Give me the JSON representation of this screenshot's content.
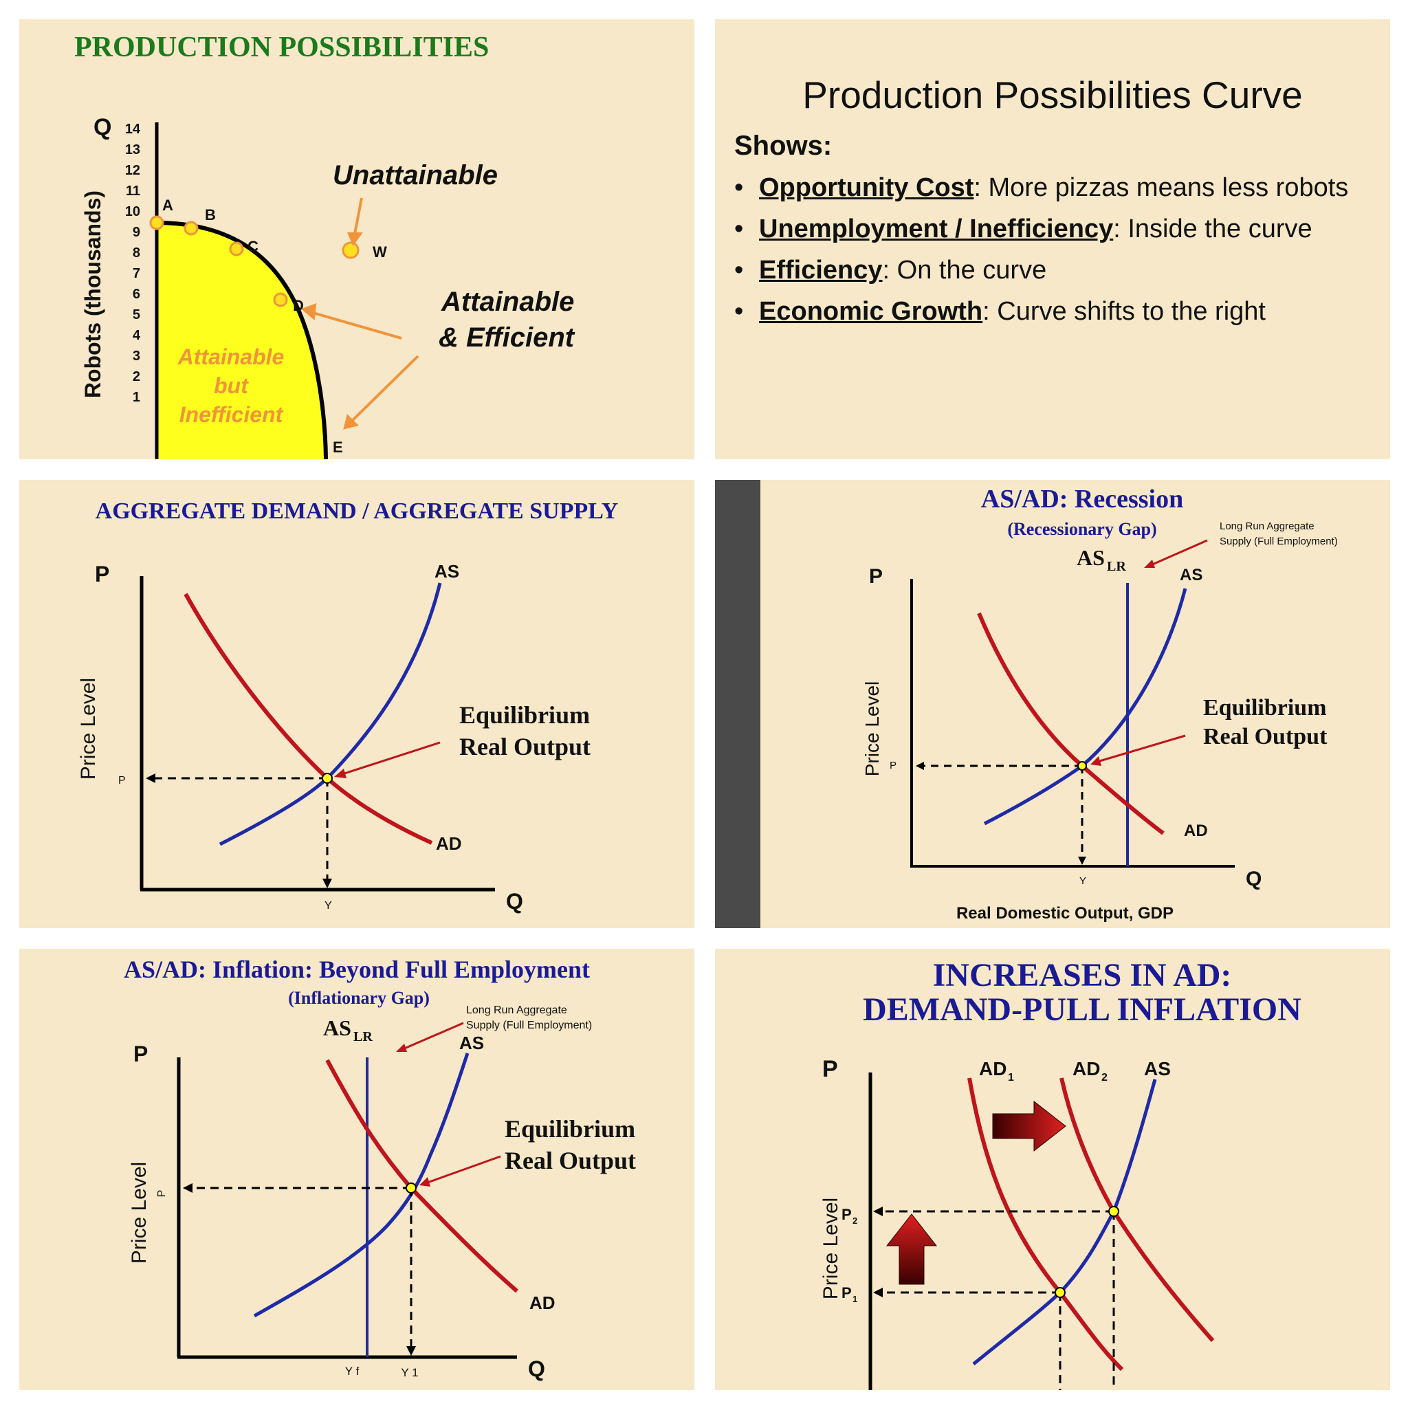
{
  "panels": [
    {
      "title": "PRODUCTION POSSIBILITIES",
      "y_axis_letter": "Q",
      "y_axis_label": "Robots (thousands)",
      "y_ticks": [
        "14",
        "13",
        "12",
        "11",
        "10",
        "9",
        "8",
        "7",
        "6",
        "5",
        "4",
        "3",
        "2",
        "1"
      ],
      "points": [
        "A",
        "B",
        "C",
        "D",
        "E",
        "W"
      ],
      "unattainable": "Unattainable",
      "attainable_efficient_1": "Attainable",
      "attainable_efficient_2": "& Efficient",
      "inefficient_1": "Attainable",
      "inefficient_2": "but",
      "inefficient_3": "Inefficient"
    },
    {
      "title": "Production Possibilities Curve",
      "shows": "Shows:",
      "bullet": "•",
      "items": [
        {
          "term": "Opportunity Cost",
          "text": ": More pizzas means less robots"
        },
        {
          "term": "Unemployment / Inefficiency",
          "text": ": Inside the curve"
        },
        {
          "term": "Efficiency",
          "text": ": On the curve"
        },
        {
          "term": "Economic Growth",
          "text": ": Curve shifts to the right"
        }
      ]
    },
    {
      "title": "AGGREGATE DEMAND / AGGREGATE SUPPLY",
      "p_axis": "P",
      "q_axis": "Q",
      "y_axis_label": "Price Level",
      "p_tick": "P",
      "y_tick": "Y",
      "as_label": "AS",
      "ad_label": "AD",
      "eq_1": "Equilibrium",
      "eq_2": "Real Output"
    },
    {
      "title": "AS/AD: Recession",
      "subtitle": "(Recessionary Gap)",
      "aslr": "AS",
      "aslr_sub": "LR",
      "lr_note_1": "Long Run Aggregate",
      "lr_note_2": "Supply (Full Employment)",
      "p_axis": "P",
      "q_axis": "Q",
      "y_axis_label": "Price Level",
      "p_tick": "P",
      "y_tick": "Y",
      "as_label": "AS",
      "ad_label": "AD",
      "eq_1": "Equilibrium",
      "eq_2": "Real Output",
      "x_axis_label": "Real Domestic Output, GDP"
    },
    {
      "title": "AS/AD: Inflation: Beyond Full Employment",
      "subtitle": "(Inflationary Gap)",
      "aslr": "AS",
      "aslr_sub": "LR",
      "lr_note_1": "Long Run Aggregate",
      "lr_note_2": "Supply (Full Employment)",
      "p_axis": "P",
      "q_axis": "Q",
      "y_axis_label": "Price Level",
      "p_tick": "P",
      "yf_tick": "Y f",
      "y1_tick": "Y 1",
      "as_label": "AS",
      "ad_label": "AD",
      "eq_1": "Equilibrium",
      "eq_2": "Real Output"
    },
    {
      "title_1": "INCREASES IN AD:",
      "title_2": "DEMAND-PULL INFLATION",
      "p_axis": "P",
      "y_axis_label": "Price Level",
      "ad1": "AD",
      "ad1_sub": "1",
      "ad2": "AD",
      "ad2_sub": "2",
      "as_label": "AS",
      "p_letter": "P",
      "p1_sub": "1",
      "p2_sub": "2"
    }
  ],
  "colors": {
    "background": "#f6e8c8",
    "green_title": "#1b7a1b",
    "navy": "#1a1a96",
    "curve_red": "#c0141c",
    "curve_blue": "#1f2aa8",
    "ppc_fill": "#ffff1e",
    "orange": "#f0943c",
    "dark_strip": "#4a4a4a"
  }
}
